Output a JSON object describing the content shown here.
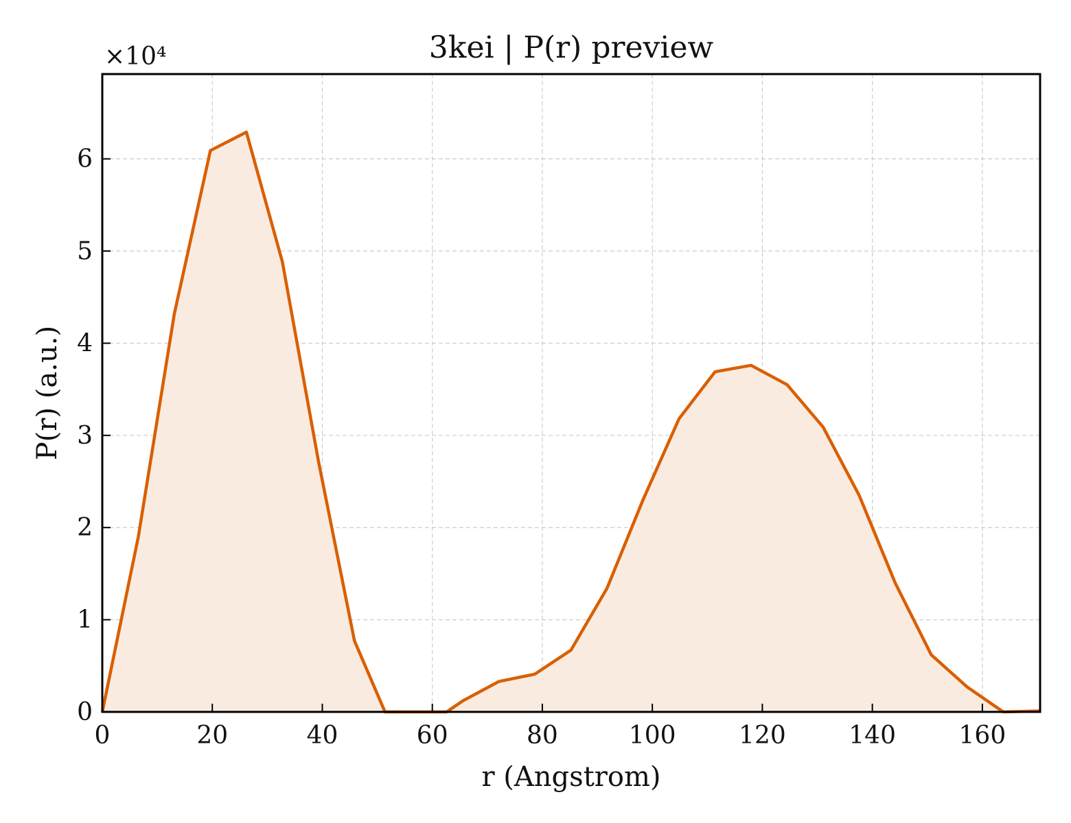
{
  "chart_data": {
    "type": "area",
    "title": "3kei | P(r) preview",
    "xlabel": "r (Angstrom)",
    "ylabel": "P(r) (a.u.)",
    "y_offset_text": "×10⁴",
    "xlim": [
      0,
      170.5
    ],
    "ylim": [
      0,
      6.92
    ],
    "y_scale_factor": 10000,
    "xticks": [
      0,
      20,
      40,
      60,
      80,
      100,
      120,
      140,
      160
    ],
    "yticks": [
      0,
      1,
      2,
      3,
      4,
      5,
      6
    ],
    "grid": true,
    "legend": "none",
    "line_color": "#d95f02",
    "fill_color": "#f9ebe0",
    "series": [
      {
        "x": [
          0,
          6.55,
          13.1,
          19.65,
          26.2,
          32.75,
          39.3,
          45.85,
          51.4,
          58.95,
          62.6,
          65.55,
          72.1,
          78.65,
          85.2,
          91.75,
          98.3,
          104.85,
          111.4,
          117.95,
          124.5,
          131.05,
          137.6,
          144.15,
          150.7,
          157.25,
          163.8,
          170.35
        ],
        "values": [
          0,
          1.9,
          4.32,
          6.09,
          6.29,
          4.88,
          2.72,
          0.77,
          0,
          0,
          0,
          0.12,
          0.33,
          0.41,
          0.67,
          1.34,
          2.3,
          3.18,
          3.69,
          3.76,
          3.55,
          3.09,
          2.35,
          1.4,
          0.62,
          0.27,
          0,
          0.01
        ]
      }
    ]
  }
}
